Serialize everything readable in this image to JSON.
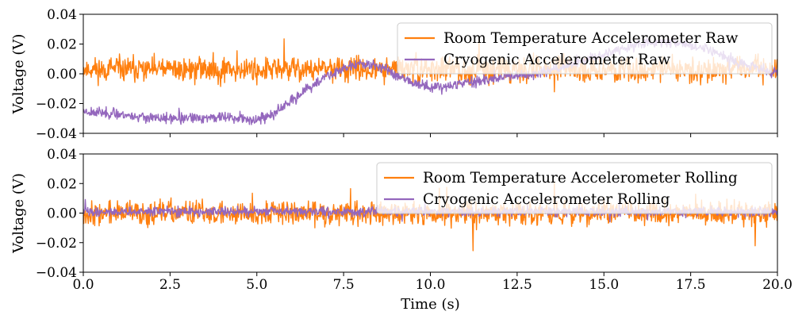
{
  "chart_data": [
    {
      "type": "line",
      "panel": "top",
      "xlabel": "",
      "ylabel": "Voltage (V)",
      "xlim": [
        0,
        20
      ],
      "ylim": [
        -0.04,
        0.04
      ],
      "x_ticks": [
        0,
        2.5,
        5,
        7.5,
        10,
        12.5,
        15,
        17.5,
        20
      ],
      "x_tick_labels": [],
      "y_ticks": [
        -0.04,
        -0.02,
        0.0,
        0.02,
        0.04
      ],
      "y_tick_labels": [
        "−0.04",
        "−0.02",
        "0.00",
        "0.02",
        "0.04"
      ],
      "legend_position": "upper-right",
      "grid": false,
      "series": [
        {
          "name": "Room Temperature Accelerometer Raw",
          "color": "#ff7f0e",
          "kind": "noise",
          "x": [
            0,
            20
          ],
          "y_center": [
            0.003,
            0.003
          ],
          "amplitude": 0.004,
          "seed": 11
        },
        {
          "name": "Cryogenic Accelerometer Raw",
          "color": "#9467bd",
          "kind": "noise",
          "x": [
            0,
            1,
            2,
            3,
            4,
            5,
            5.5,
            6,
            6.5,
            7,
            7.5,
            8,
            8.5,
            9,
            9.5,
            10,
            10.5,
            11,
            12,
            13,
            14,
            15,
            16,
            17,
            18,
            19,
            20
          ],
          "y_center": [
            -0.025,
            -0.027,
            -0.03,
            -0.03,
            -0.029,
            -0.031,
            -0.027,
            -0.018,
            -0.01,
            -0.002,
            0.004,
            0.007,
            0.005,
            0.0,
            -0.006,
            -0.009,
            -0.008,
            -0.006,
            -0.003,
            0.0,
            0.006,
            0.013,
            0.02,
            0.022,
            0.016,
            0.007,
            0.0
          ],
          "amplitude": 0.0017,
          "seed": 23
        }
      ]
    },
    {
      "type": "line",
      "panel": "bottom",
      "xlabel": "Time (s)",
      "ylabel": "Voltage (V)",
      "xlim": [
        0,
        20
      ],
      "ylim": [
        -0.04,
        0.04
      ],
      "x_ticks": [
        0,
        2.5,
        5,
        7.5,
        10,
        12.5,
        15,
        17.5,
        20
      ],
      "x_tick_labels": [
        "0.0",
        "2.5",
        "5.0",
        "7.5",
        "10.0",
        "12.5",
        "15.0",
        "17.5",
        "20.0"
      ],
      "y_ticks": [
        -0.04,
        -0.02,
        0.0,
        0.02,
        0.04
      ],
      "y_tick_labels": [
        "−0.04",
        "−0.02",
        "0.00",
        "0.02",
        "0.04"
      ],
      "legend_position": "upper-right",
      "grid": false,
      "series": [
        {
          "name": "Room Temperature Accelerometer Rolling",
          "color": "#ff7f0e",
          "kind": "noise",
          "x": [
            0,
            20
          ],
          "y_center": [
            0.0,
            0.0
          ],
          "amplitude": 0.004,
          "seed": 37
        },
        {
          "name": "Cryogenic Accelerometer Rolling",
          "color": "#9467bd",
          "kind": "noise",
          "x": [
            0,
            20
          ],
          "y_center": [
            0.001,
            0.001
          ],
          "amplitude": 0.0015,
          "seed": 41
        }
      ]
    }
  ]
}
